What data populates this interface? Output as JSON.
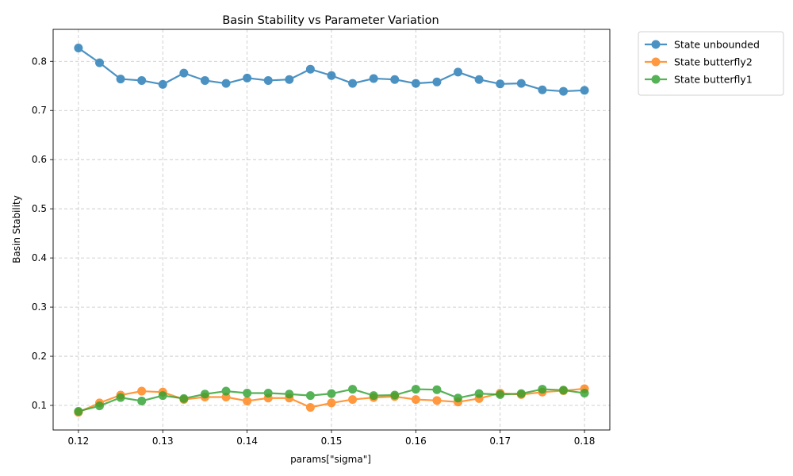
{
  "chart_data": {
    "type": "line",
    "title": "Basin Stability vs Parameter Variation",
    "xlabel": "params[\"sigma\"]",
    "ylabel": "Basin Stability",
    "xlim": [
      0.117,
      0.183
    ],
    "ylim": [
      0.05,
      0.865
    ],
    "grid": true,
    "legend_position": "outside-top-right",
    "x_ticks": [
      0.12,
      0.13,
      0.14,
      0.15,
      0.16,
      0.17,
      0.18
    ],
    "x_tick_labels": [
      "0.12",
      "0.13",
      "0.14",
      "0.15",
      "0.16",
      "0.17",
      "0.18"
    ],
    "y_ticks": [
      0.1,
      0.2,
      0.3,
      0.4,
      0.5,
      0.6,
      0.7,
      0.8
    ],
    "y_tick_labels": [
      "0.1",
      "0.2",
      "0.3",
      "0.4",
      "0.5",
      "0.6",
      "0.7",
      "0.8"
    ],
    "x": [
      0.12,
      0.1225,
      0.125,
      0.1275,
      0.13,
      0.1325,
      0.135,
      0.1375,
      0.14,
      0.1425,
      0.145,
      0.1475,
      0.15,
      0.1525,
      0.155,
      0.1575,
      0.16,
      0.1625,
      0.165,
      0.1675,
      0.17,
      0.1725,
      0.175,
      0.1775,
      0.18
    ],
    "series": [
      {
        "name": "State unbounded",
        "color": "#1f77b4",
        "values": [
          0.827,
          0.797,
          0.764,
          0.761,
          0.753,
          0.776,
          0.761,
          0.755,
          0.766,
          0.761,
          0.763,
          0.784,
          0.771,
          0.755,
          0.765,
          0.763,
          0.755,
          0.758,
          0.778,
          0.763,
          0.754,
          0.755,
          0.742,
          0.739,
          0.741
        ]
      },
      {
        "name": "State butterfly2",
        "color": "#ff7f0e",
        "values": [
          0.086,
          0.105,
          0.121,
          0.129,
          0.127,
          0.112,
          0.117,
          0.117,
          0.109,
          0.115,
          0.115,
          0.096,
          0.105,
          0.112,
          0.116,
          0.118,
          0.112,
          0.11,
          0.107,
          0.114,
          0.125,
          0.122,
          0.127,
          0.13,
          0.134
        ]
      },
      {
        "name": "State butterfly1",
        "color": "#2ca02c",
        "values": [
          0.088,
          0.099,
          0.116,
          0.109,
          0.12,
          0.114,
          0.123,
          0.129,
          0.125,
          0.125,
          0.123,
          0.12,
          0.124,
          0.133,
          0.12,
          0.121,
          0.133,
          0.132,
          0.115,
          0.124,
          0.122,
          0.124,
          0.133,
          0.131,
          0.125
        ]
      }
    ]
  }
}
